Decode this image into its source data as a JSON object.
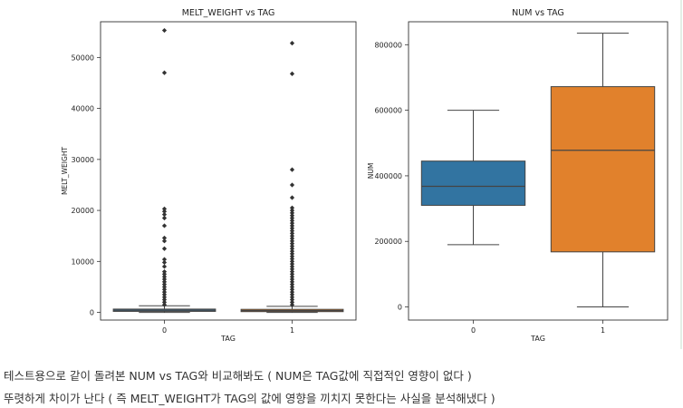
{
  "chart_data": [
    {
      "type": "box",
      "title": "MELT_WEIGHT vs TAG",
      "xlabel": "TAG",
      "ylabel": "MELT_WEIGHT",
      "categories": [
        "0",
        "1"
      ],
      "ylim": [
        -1500,
        57000
      ],
      "yticks": [
        0,
        10000,
        20000,
        30000,
        40000,
        50000
      ],
      "colors": [
        "#3274a1",
        "#e1812c"
      ],
      "boxes": [
        {
          "category": "0",
          "whislo": 0,
          "q1": 200,
          "median": 420,
          "q3": 650,
          "whishi": 1300,
          "fliers": [
            1500,
            2000,
            2500,
            3000,
            3500,
            4000,
            4500,
            5000,
            5500,
            6000,
            6500,
            7000,
            7500,
            8000,
            9000,
            9800,
            10400,
            12500,
            14000,
            14600,
            17000,
            18500,
            19200,
            19800,
            20300,
            47000,
            55300
          ]
        },
        {
          "category": "1",
          "whislo": 0,
          "q1": 150,
          "median": 350,
          "q3": 600,
          "whishi": 1200,
          "fliers": [
            1500,
            2000,
            2500,
            3000,
            3500,
            4000,
            4500,
            5000,
            5500,
            6000,
            6500,
            7000,
            7500,
            8000,
            8500,
            9000,
            9500,
            10000,
            10500,
            11000,
            11500,
            12000,
            12500,
            13000,
            13500,
            14000,
            14500,
            15000,
            15500,
            16000,
            16500,
            17000,
            17500,
            18000,
            18500,
            19000,
            19500,
            20000,
            20500,
            22500,
            25000,
            28000,
            46800,
            52800
          ]
        }
      ]
    },
    {
      "type": "box",
      "title": "NUM vs TAG",
      "xlabel": "TAG",
      "ylabel": "NUM",
      "categories": [
        "0",
        "1"
      ],
      "ylim": [
        -40000,
        870000
      ],
      "yticks": [
        0,
        200000,
        400000,
        600000,
        800000
      ],
      "colors": [
        "#3274a1",
        "#e1812c"
      ],
      "boxes": [
        {
          "category": "0",
          "whislo": 190000,
          "q1": 310000,
          "median": 368000,
          "q3": 445000,
          "whishi": 600000,
          "fliers": []
        },
        {
          "category": "1",
          "whislo": 0,
          "q1": 168000,
          "median": 478000,
          "q3": 672000,
          "whishi": 835000,
          "fliers": []
        }
      ]
    }
  ],
  "caption": {
    "line1": "테스트용으로 같이 돌려본 NUM vs TAG와 비교해봐도 ( NUM은 TAG값에 직접적인 영향이 없다 )",
    "line2": "뚜렷하게 차이가 난다 ( 즉 MELT_WEIGHT가 TAG의 값에 영향을 끼치지 못한다는 사실을 분석해냈다 )"
  }
}
